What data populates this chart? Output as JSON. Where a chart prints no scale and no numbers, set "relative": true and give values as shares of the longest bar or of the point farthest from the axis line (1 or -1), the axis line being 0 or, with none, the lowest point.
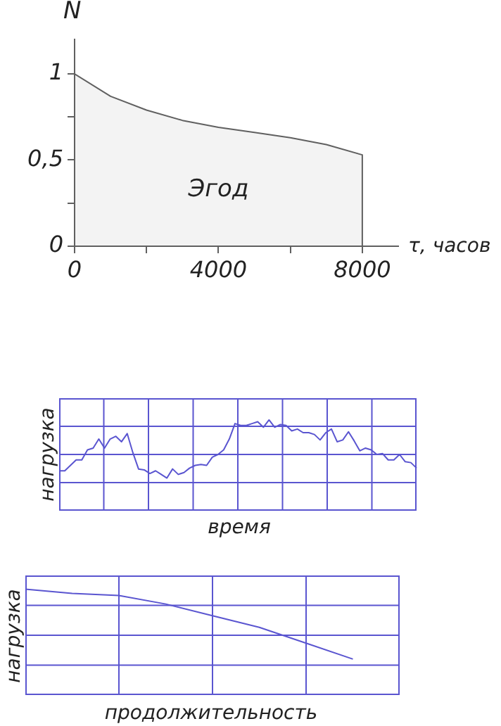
{
  "chart_data": [
    {
      "type": "area",
      "ylabel": "N",
      "xlabel": "τ, часов",
      "x": [
        0,
        1000,
        2000,
        3000,
        4000,
        5000,
        6000,
        7000,
        8000,
        8000
      ],
      "values": [
        1,
        0.87,
        0.79,
        0.73,
        0.69,
        0.66,
        0.63,
        0.59,
        0.53,
        0
      ],
      "color": "#606060",
      "xlim": [
        0,
        9000
      ],
      "xticks": [
        0,
        {
          "value": 2000,
          "label": null
        },
        4000,
        {
          "value": 6000,
          "label": null
        },
        8000
      ],
      "ylim": [
        0,
        1.2
      ],
      "yticks": [
        0,
        {
          "value": 0.25,
          "label": null
        },
        {
          "value": 0.5,
          "label": "0,5"
        },
        {
          "value": 0.75,
          "label": null
        },
        1
      ],
      "annotations": [
        "Эгод"
      ],
      "legend": false,
      "marker": "none",
      "grid": false
    },
    {
      "type": "line",
      "relative": true,
      "ylabel": "нагрузка",
      "xlabel": "время",
      "color": "#5a55d0",
      "categories": [
        null,
        null,
        null,
        null,
        null,
        null,
        null,
        null,
        null,
        null,
        null,
        null,
        null,
        null,
        null,
        null,
        null,
        null,
        null,
        null,
        null,
        null,
        null,
        null,
        null,
        null,
        null,
        null,
        null,
        null,
        null,
        null,
        null,
        null,
        null,
        null,
        null,
        null,
        null,
        null,
        null,
        null,
        null,
        null,
        null,
        null,
        null,
        null,
        null,
        null,
        null,
        null,
        null,
        null,
        null,
        null,
        null,
        null,
        null,
        null,
        null,
        null,
        null,
        null
      ],
      "values": [
        0.44,
        0.44,
        0.5,
        0.56,
        0.56,
        0.67,
        0.69,
        0.79,
        0.69,
        0.79,
        0.82,
        0.76,
        0.85,
        0.64,
        0.46,
        0.45,
        0.41,
        0.44,
        0.4,
        0.36,
        0.46,
        0.4,
        0.42,
        0.47,
        0.5,
        0.51,
        0.5,
        0.59,
        0.62,
        0.67,
        0.79,
        0.96,
        0.94,
        0.94,
        0.96,
        0.98,
        0.92,
        1,
        0.92,
        0.95,
        0.94,
        0.88,
        0.9,
        0.86,
        0.86,
        0.84,
        0.78,
        0.86,
        0.9,
        0.76,
        0.78,
        0.87,
        0.77,
        0.66,
        0.69,
        0.67,
        0.62,
        0.63,
        0.56,
        0.56,
        0.62,
        0.54,
        0.53,
        0.47
      ],
      "legend": false,
      "marker": "none",
      "grid": true
    },
    {
      "type": "line",
      "relative": true,
      "ylabel": "нагрузка",
      "xlabel": "продолжительность",
      "color": "#5a55d0",
      "categories": [
        null,
        null,
        null,
        null,
        null,
        null,
        null,
        null,
        null
      ],
      "values": [
        1,
        0.96,
        0.94,
        0.86,
        0.75,
        0.64,
        0.49,
        0.34,
        null
      ],
      "legend": false,
      "marker": "none",
      "grid": true
    }
  ]
}
